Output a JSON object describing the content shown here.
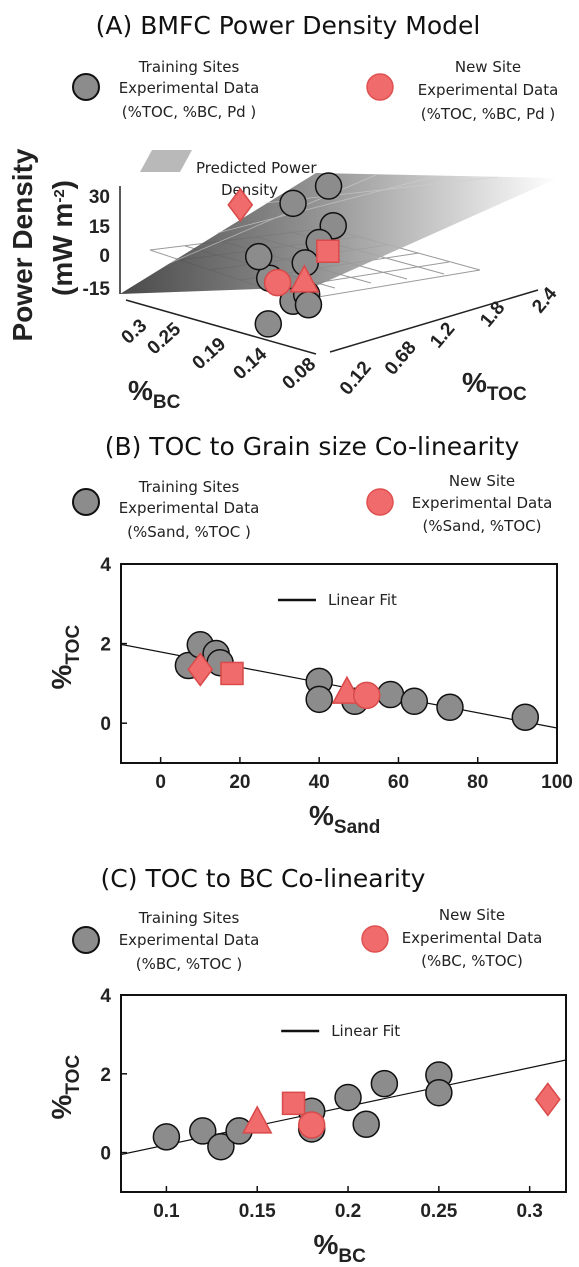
{
  "legend": {
    "training_label": [
      "Training Sites",
      "Experimental Data"
    ],
    "new_label": [
      "New Site",
      "Experimental Data"
    ],
    "training_color": "#8c8c8c",
    "new_color": "#f06b6b"
  },
  "chart_data": [
    {
      "panel": "A",
      "type": "scatter",
      "title": "(A) BMFC Power Density Model",
      "legend_training_vars": "(%TOC, %BC, Pd )",
      "legend_new_vars": "(%TOC, %BC, Pd )",
      "surface_label": [
        "Predicted Power",
        "Density"
      ],
      "zlabel": [
        "Power Density",
        "(mW m",
        "-2",
        ")"
      ],
      "xlabel": "%",
      "xlabel_sub": "BC",
      "ylabel": "%",
      "ylabel_sub": "TOC",
      "z_ticks": [
        "30",
        "15",
        "0",
        "-15"
      ],
      "bc_ticks": [
        "0.3",
        "0.25",
        "0.19",
        "0.14",
        "0.08"
      ],
      "toc_ticks": [
        "0.12",
        "0.68",
        "1.2",
        "1.8",
        "2.4"
      ],
      "training_points": [
        {
          "bc": 0.25,
          "toc": 1.95,
          "pd": 28
        },
        {
          "bc": 0.25,
          "toc": 1.5,
          "pd": 22
        },
        {
          "bc": 0.22,
          "toc": 1.75,
          "pd": 12
        },
        {
          "bc": 0.2,
          "toc": 1.4,
          "pd": 8
        },
        {
          "bc": 0.18,
          "toc": 1.05,
          "pd": 2
        },
        {
          "bc": 0.18,
          "toc": 0.6,
          "pd": -3
        },
        {
          "bc": 0.14,
          "toc": 0.55,
          "pd": -10
        },
        {
          "bc": 0.13,
          "toc": 0.15,
          "pd": -18
        },
        {
          "bc": 0.12,
          "toc": 0.55,
          "pd": -4
        },
        {
          "bc": 0.1,
          "toc": 0.4,
          "pd": -6
        },
        {
          "bc": 0.21,
          "toc": 0.72,
          "pd": 4
        }
      ],
      "new_points": [
        {
          "marker": "diamond",
          "bc": 0.31,
          "toc": 1.35,
          "pd": 15
        },
        {
          "marker": "square",
          "bc": 0.17,
          "toc": 1.25,
          "pd": 8
        },
        {
          "marker": "circle",
          "bc": 0.18,
          "toc": 0.7,
          "pd": -6
        },
        {
          "marker": "triangle",
          "bc": 0.15,
          "toc": 0.78,
          "pd": -2
        }
      ]
    },
    {
      "panel": "B",
      "type": "scatter",
      "title": "(B) TOC to Grain size Co-linearity",
      "legend_training_vars": "(%Sand, %TOC )",
      "legend_new_vars": "(%Sand, %TOC)",
      "xlabel": "%",
      "xlabel_sub": "Sand",
      "ylabel": "%",
      "ylabel_sub": "TOC",
      "xlim": [
        -10,
        100
      ],
      "ylim": [
        -1,
        4
      ],
      "xticks": [
        "0",
        "20",
        "40",
        "60",
        "80",
        "100"
      ],
      "yticks": [
        "0",
        "2",
        "4"
      ],
      "fit_label": "Linear Fit",
      "fit_line": {
        "x": [
          -10,
          100
        ],
        "y": [
          1.98,
          -0.12
        ]
      },
      "training_points": [
        {
          "x": 7,
          "y": 1.45
        },
        {
          "x": 10,
          "y": 1.97
        },
        {
          "x": 14,
          "y": 1.75
        },
        {
          "x": 15,
          "y": 1.52
        },
        {
          "x": 40,
          "y": 1.05
        },
        {
          "x": 40,
          "y": 0.6
        },
        {
          "x": 49,
          "y": 0.55
        },
        {
          "x": 58,
          "y": 0.72
        },
        {
          "x": 64,
          "y": 0.55
        },
        {
          "x": 73,
          "y": 0.4
        },
        {
          "x": 92,
          "y": 0.15
        }
      ],
      "new_points": [
        {
          "marker": "diamond",
          "x": 10,
          "y": 1.35
        },
        {
          "marker": "square",
          "x": 18,
          "y": 1.25
        },
        {
          "marker": "triangle",
          "x": 47,
          "y": 0.78
        },
        {
          "marker": "circle",
          "x": 52,
          "y": 0.7
        }
      ]
    },
    {
      "panel": "C",
      "type": "scatter",
      "title": "(C) TOC to BC Co-linearity",
      "legend_training_vars": "(%BC, %TOC )",
      "legend_new_vars": "(%BC, %TOC)",
      "xlabel": "%",
      "xlabel_sub": "BC",
      "ylabel": "%",
      "ylabel_sub": "TOC",
      "xlim": [
        0.075,
        0.32
      ],
      "ylim": [
        -1,
        4
      ],
      "xticks": [
        "0.1",
        "0.15",
        "0.2",
        "0.25",
        "0.3"
      ],
      "yticks": [
        "0",
        "2",
        "4"
      ],
      "fit_label": "Linear Fit",
      "fit_line": {
        "x": [
          0.075,
          0.32
        ],
        "y": [
          -0.05,
          2.35
        ]
      },
      "training_points": [
        {
          "x": 0.1,
          "y": 0.4
        },
        {
          "x": 0.12,
          "y": 0.55
        },
        {
          "x": 0.13,
          "y": 0.15
        },
        {
          "x": 0.14,
          "y": 0.55
        },
        {
          "x": 0.18,
          "y": 1.05
        },
        {
          "x": 0.18,
          "y": 0.6
        },
        {
          "x": 0.2,
          "y": 1.4
        },
        {
          "x": 0.21,
          "y": 0.72
        },
        {
          "x": 0.22,
          "y": 1.75
        },
        {
          "x": 0.25,
          "y": 1.97
        },
        {
          "x": 0.25,
          "y": 1.52
        }
      ],
      "new_points": [
        {
          "marker": "triangle",
          "x": 0.15,
          "y": 0.78
        },
        {
          "marker": "square",
          "x": 0.17,
          "y": 1.25
        },
        {
          "marker": "circle",
          "x": 0.18,
          "y": 0.7
        },
        {
          "marker": "diamond",
          "x": 0.31,
          "y": 1.35
        }
      ]
    }
  ]
}
